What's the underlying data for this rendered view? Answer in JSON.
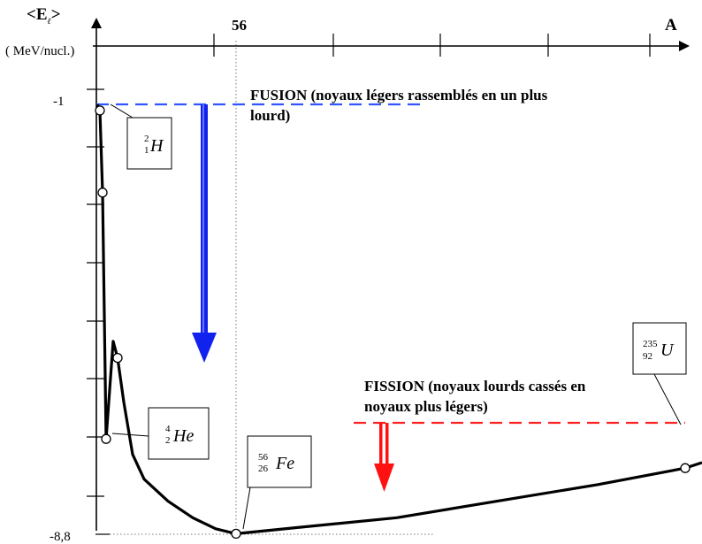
{
  "chart_data": {
    "type": "line",
    "ylabel_main": "<E",
    "ylabel_sub": "ℓ",
    "ylabel_close": ">",
    "yunit": "( MeV/nucl.)",
    "xlabel": "A",
    "x_tick_label": "56",
    "y_tick_labels": [
      "-1",
      "-8,8"
    ],
    "ylim": [
      -8.8,
      -1
    ],
    "series": [
      {
        "points": [
          {
            "A": 1,
            "E": -1.0
          },
          {
            "A": 2,
            "E": -1.11
          },
          {
            "A": 3,
            "E": -2.6
          },
          {
            "A": 4,
            "E": -7.07
          },
          {
            "A": 6,
            "E": -5.3
          },
          {
            "A": 7,
            "E": -5.6
          },
          {
            "A": 9,
            "E": -6.4
          },
          {
            "A": 12,
            "E": -7.35
          },
          {
            "A": 16,
            "E": -7.8
          },
          {
            "A": 24,
            "E": -8.2
          },
          {
            "A": 35,
            "E": -8.5
          },
          {
            "A": 45,
            "E": -8.7
          },
          {
            "A": 56,
            "E": -8.79
          },
          {
            "A": 80,
            "E": -8.68
          },
          {
            "A": 120,
            "E": -8.5
          },
          {
            "A": 160,
            "E": -8.2
          },
          {
            "A": 200,
            "E": -7.9
          },
          {
            "A": 235,
            "E": -7.6
          },
          {
            "A": 250,
            "E": -7.5
          }
        ]
      }
    ],
    "marked_points": [
      {
        "A": 2,
        "E": -1.11
      },
      {
        "A": 3,
        "E": -2.6
      },
      {
        "A": 4,
        "E": -7.07
      },
      {
        "A": 7,
        "E": -5.6
      },
      {
        "A": 56,
        "E": -8.79
      },
      {
        "A": 235,
        "E": -7.6
      }
    ],
    "nuclides": [
      {
        "symbol": "H",
        "mass": "2",
        "charge": "1",
        "at_A": 2,
        "at_E": -1.11
      },
      {
        "symbol": "He",
        "mass": "4",
        "charge": "2",
        "at_A": 4,
        "at_E": -7.07
      },
      {
        "symbol": "Fe",
        "mass": "56",
        "charge": "26",
        "at_A": 56,
        "at_E": -8.79
      },
      {
        "symbol": "U",
        "mass": "235",
        "charge": "92",
        "at_A": 235,
        "at_E": -7.6
      }
    ],
    "annotations": [
      {
        "text": [
          "FUSION (noyaux légers rassemblés en un plus",
          "lourd)"
        ],
        "color": "#000000"
      },
      {
        "text": [
          "FISSION (noyaux lourds cassés en",
          "noyaux plus légers)"
        ],
        "color": "#000000"
      }
    ],
    "reference_lines": [
      {
        "name": "fusion-level",
        "E": -1.0,
        "color": "#3355ff",
        "style": "dashed"
      },
      {
        "name": "fission-level",
        "E": -7.6,
        "color": "#ff2222",
        "style": "dashed"
      }
    ],
    "arrows": [
      {
        "name": "fusion-arrow",
        "color": "#1122ee",
        "style": "solid"
      },
      {
        "name": "fission-arrow",
        "color": "#ff1111",
        "style": "double"
      }
    ],
    "colors": {
      "axis": "#000000",
      "curve": "#000000",
      "fusion": "#1a33ff",
      "fission": "#ff1a1a"
    }
  }
}
